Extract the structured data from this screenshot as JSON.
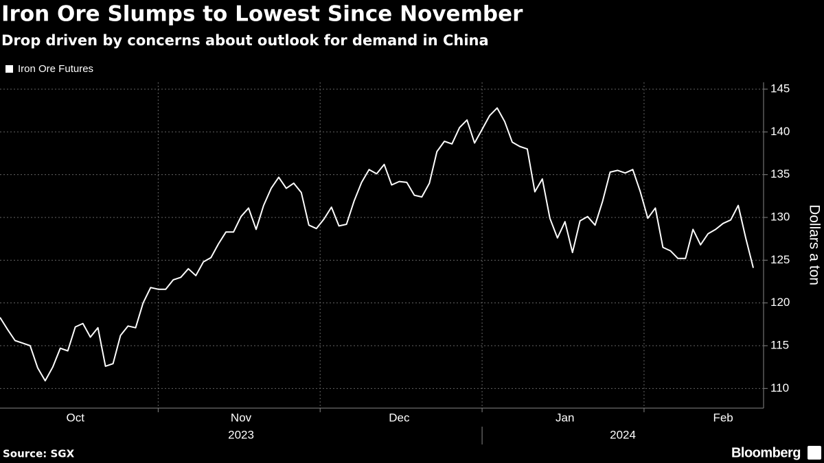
{
  "chart_data": {
    "type": "line",
    "title": "Iron Ore Slumps to Lowest Since November",
    "subtitle": "Drop driven by concerns about outlook for demand in China",
    "y_label": "Dollars a ton",
    "source": "Source: SGX",
    "brand": "Bloomberg",
    "years": [
      "2023",
      "2024"
    ],
    "categories": [
      null,
      null,
      null,
      null,
      null,
      null,
      null,
      null,
      null,
      null,
      "Oct",
      null,
      null,
      null,
      null,
      null,
      null,
      null,
      null,
      null,
      null,
      null,
      null,
      null,
      null,
      null,
      null,
      null,
      null,
      null,
      null,
      null,
      "Nov",
      null,
      null,
      null,
      null,
      null,
      null,
      null,
      null,
      null,
      null,
      null,
      null,
      null,
      null,
      null,
      null,
      null,
      null,
      null,
      null,
      "Dec",
      null,
      null,
      null,
      null,
      null,
      null,
      null,
      null,
      null,
      null,
      null,
      null,
      null,
      null,
      null,
      null,
      null,
      null,
      null,
      null,
      null,
      "Jan",
      null,
      null,
      null,
      null,
      null,
      null,
      null,
      null,
      null,
      null,
      null,
      null,
      null,
      null,
      null,
      null,
      null,
      null,
      null,
      null,
      "Feb",
      null,
      null,
      null,
      null
    ],
    "series": [
      {
        "name": "Iron Ore Futures",
        "color": "#ffffff",
        "values": [
          118.3,
          116.9,
          115.6,
          115.3,
          115.0,
          112.4,
          110.9,
          112.5,
          114.7,
          114.4,
          117.2,
          117.6,
          116.0,
          117.1,
          112.6,
          112.9,
          116.2,
          117.3,
          117.1,
          120.0,
          121.8,
          121.6,
          121.6,
          122.7,
          123.0,
          124.0,
          123.2,
          124.8,
          125.3,
          126.9,
          128.3,
          128.3,
          130.1,
          131.1,
          128.6,
          131.4,
          133.4,
          134.7,
          133.4,
          134.0,
          132.9,
          129.1,
          128.7,
          129.8,
          131.2,
          129.0,
          129.2,
          131.9,
          134.1,
          135.6,
          135.1,
          136.2,
          133.8,
          134.2,
          134.1,
          132.6,
          132.4,
          134.0,
          137.7,
          138.9,
          138.6,
          140.5,
          141.4,
          138.7,
          140.3,
          141.9,
          142.8,
          141.2,
          138.8,
          138.3,
          138.0,
          133.0,
          134.5,
          129.9,
          127.6,
          129.5,
          125.9,
          129.6,
          130.1,
          129.1,
          131.9,
          135.3,
          135.5,
          135.2,
          135.6,
          133.0,
          129.9,
          131.1,
          126.5,
          126.1,
          125.2,
          125.2,
          128.6,
          126.8,
          128.1,
          128.6,
          129.3,
          129.7,
          131.4,
          127.6,
          124.1
        ]
      }
    ],
    "ylim": [
      107.7,
      145.8
    ],
    "yticks": [
      110,
      115,
      120,
      125,
      130,
      135,
      140,
      145
    ],
    "grid": true
  }
}
